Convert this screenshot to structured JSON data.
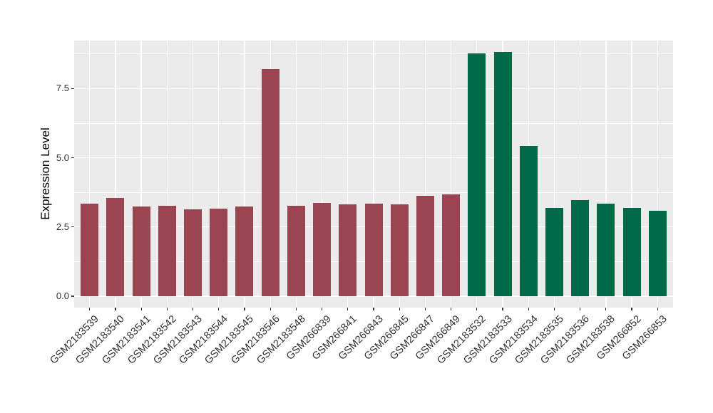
{
  "figure": {
    "background": "#FFFFFF",
    "panel_background": "#EBEBEB",
    "grid_color": "#FFFFFF",
    "axis_text_color": "#303030",
    "tick_mark_color": "#333333"
  },
  "chart_data": {
    "type": "bar",
    "title": "",
    "xlabel": "",
    "ylabel": "Expression Level",
    "legend": "none",
    "grid": "major and minor horizontal white gridlines, vertical white gridlines at bar centers, on light gray panel",
    "categories": [
      "GSM2183539",
      "GSM2183540",
      "GSM2183541",
      "GSM2183542",
      "GSM2183543",
      "GSM2183544",
      "GSM2183545",
      "GSM2183546",
      "GSM2183548",
      "GSM266839",
      "GSM266841",
      "GSM266843",
      "GSM266845",
      "GSM266847",
      "GSM266849",
      "GSM2183532",
      "GSM2183533",
      "GSM2183534",
      "GSM2183535",
      "GSM2183536",
      "GSM2183538",
      "GSM266852",
      "GSM266853"
    ],
    "values": [
      3.35,
      3.55,
      3.25,
      3.27,
      3.14,
      3.16,
      3.25,
      8.2,
      3.27,
      3.38,
      3.31,
      3.34,
      3.31,
      3.62,
      3.67,
      8.76,
      8.81,
      5.42,
      3.2,
      3.47,
      3.34,
      3.2,
      3.08
    ],
    "bar_groups": [
      0,
      0,
      0,
      0,
      0,
      0,
      0,
      0,
      0,
      0,
      0,
      0,
      0,
      0,
      0,
      1,
      1,
      1,
      1,
      1,
      1,
      1,
      1
    ],
    "group_colors": [
      "#9B4452",
      "#006948"
    ],
    "ytick_labels": [
      "0.0",
      "2.5",
      "5.0",
      "7.5"
    ],
    "ytick_values": [
      0,
      2.5,
      5.0,
      7.5
    ],
    "minor_tick_values": [
      1.25,
      3.75,
      6.25,
      8.75
    ],
    "ylim": [
      0,
      9.23
    ]
  }
}
